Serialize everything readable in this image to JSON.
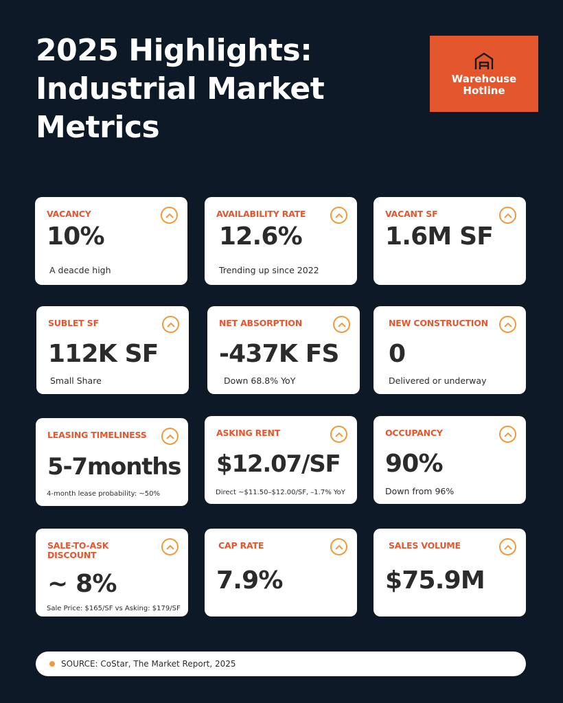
{
  "header": {
    "title": "2025 Highlights: Industrial Market Metrics"
  },
  "logo": {
    "text": "Warehouse\nHotline",
    "icon": "warehouse-icon",
    "background_color": "#e4572e"
  },
  "colors": {
    "background": "#0d1926",
    "accent": "#e4572e",
    "chevron": "#ef9a3c",
    "card": "#ffffff",
    "text": "#2b2b2b"
  },
  "metrics": [
    {
      "label": "VACANCY",
      "value": "10%",
      "sub": "A deacde high",
      "icon": "chevron-up-icon"
    },
    {
      "label": "AVAILABILITY RATE",
      "value": "12.6%",
      "sub": "Trending up since 2022",
      "icon": "chevron-up-icon"
    },
    {
      "label": "VACANT SF",
      "value": "1.6M SF",
      "sub": "",
      "icon": "chevron-up-icon"
    },
    {
      "label": "SUBLET SF",
      "value": "112K SF",
      "sub": "Small Share",
      "icon": "chevron-up-icon"
    },
    {
      "label": "NET ABSORPTION",
      "value": "-437K FS",
      "sub": "Down 68.8% YoY",
      "icon": "chevron-up-icon"
    },
    {
      "label": "NEW CONSTRUCTION",
      "value": "0",
      "sub": "Delivered or underway",
      "icon": "chevron-up-icon"
    },
    {
      "label": "LEASING TIMELINESS",
      "value": "5-7months",
      "sub": "4-month lease probability: ~50%",
      "icon": "chevron-up-icon"
    },
    {
      "label": "ASKING RENT",
      "value": "$12.07/SF",
      "sub": "Direct ~$11.50–$12.00/SF, –1.7% YoY",
      "icon": "chevron-up-icon"
    },
    {
      "label": "OCCUPANCY",
      "value": "90%",
      "sub": "Down from 96%",
      "icon": "chevron-up-icon"
    },
    {
      "label": "SALE-TO-ASK\nDISCOUNT",
      "value": "~ 8%",
      "sub": "Sale Price: $165/SF vs Asking: $179/SF",
      "icon": "chevron-up-icon"
    },
    {
      "label": "CAP RATE",
      "value": "7.9%",
      "sub": "",
      "icon": "chevron-up-icon"
    },
    {
      "label": "SALES VOLUME",
      "value": "$75.9M",
      "sub": "",
      "icon": "chevron-up-icon"
    }
  ],
  "footer": {
    "source": "SOURCE: CoStar, The Market Report, 2025"
  }
}
